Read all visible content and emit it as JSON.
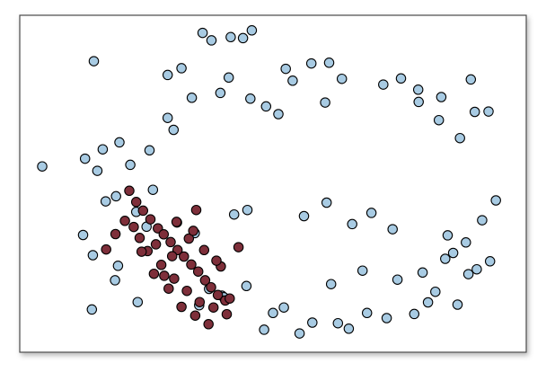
{
  "chart_data": {
    "type": "scatter",
    "title": "",
    "xlabel": "",
    "ylabel": "",
    "xlim": [
      0,
      100
    ],
    "ylim": [
      0,
      100
    ],
    "axes_visible": false,
    "grid": false,
    "legend": "none",
    "colors": {
      "series_1_fill": "#a8cbe3",
      "series_2_fill": "#7e2f3a",
      "marker_edge": "#000000",
      "frame": "#4a4a4a",
      "background": "#ffffff"
    },
    "series": [
      {
        "color_key": "series_1_fill",
        "x": [
          3.1,
          13.6,
          35.7,
          37.5,
          41.4,
          43.9,
          45.7,
          31.4,
          28.6,
          41.0,
          28.6,
          33.5,
          39.3,
          52.6,
          54.0,
          57.8,
          61.4,
          64.0,
          72.4,
          76.0,
          79.5,
          84.2,
          90.2,
          93.8,
          91.0,
          18.8,
          15.4,
          11.8,
          14.3,
          21.0,
          24.9,
          29.8,
          45.4,
          48.6,
          51.1,
          60.6,
          79.6,
          83.7,
          88.0,
          18.1,
          16.0,
          22.2,
          30.5,
          34.1,
          25.6,
          42.1,
          44.8,
          56.3,
          60.9,
          66.1,
          70.0,
          74.3,
          85.5,
          89.2,
          92.5,
          95.3,
          86.6,
          91.4,
          94.1,
          13.2,
          17.9,
          22.5,
          35.0,
          39.6,
          50.0,
          58.0,
          65.4,
          73.1,
          81.5,
          87.5,
          11.4,
          13.4,
          37.0,
          40.0,
          44.6,
          61.8,
          68.2,
          75.3,
          80.4,
          85.0,
          89.7,
          83.0,
          78.7,
          69.1,
          63.2,
          55.4,
          52.2,
          48.2,
          24.3,
          18.5
        ],
        "y": [
          55.7,
          88.5,
          97.3,
          95.0,
          96.0,
          95.7,
          98.1,
          86.3,
          84.2,
          83.4,
          70.8,
          77.1,
          78.6,
          86.1,
          82.4,
          87.8,
          88.0,
          83.0,
          81.2,
          83.1,
          79.6,
          77.3,
          82.8,
          72.8,
          72.7,
          63.2,
          61.0,
          58.1,
          54.3,
          56.2,
          60.7,
          67.1,
          76.8,
          74.4,
          72.0,
          75.6,
          75.8,
          70.1,
          64.5,
          46.4,
          44.8,
          41.5,
          38.2,
          34.9,
          48.4,
          40.7,
          42.1,
          40.2,
          44.4,
          37.7,
          41.2,
          36.1,
          34.2,
          32.0,
          38.9,
          45.1,
          28.7,
          23.6,
          26.1,
          11.1,
          20.2,
          13.4,
          12.4,
          15.4,
          10.0,
          7.0,
          5.1,
          8.4,
          13.3,
          12.6,
          34.3,
          28.0,
          17.5,
          14.9,
          18.4,
          19.0,
          23.2,
          20.4,
          22.6,
          26.9,
          22.1,
          16.6,
          9.7,
          10.0,
          6.8,
          3.6,
          11.7,
          4.8,
          36.9,
          24.7
        ]
      },
      {
        "color_key": "series_2_fill",
        "x": [
          20.8,
          22.2,
          23.6,
          25.1,
          26.6,
          27.8,
          29.2,
          30.6,
          31.9,
          33.4,
          34.8,
          36.2,
          37.4,
          38.8,
          40.3,
          41.2,
          21.7,
          24.5,
          27.3,
          29.9,
          32.5,
          35.1,
          37.9,
          40.6,
          22.9,
          25.8,
          28.8,
          31.4,
          34.2,
          36.9,
          39.4,
          23.3,
          26.2,
          29.5,
          32.9,
          36.0,
          38.5,
          30.4,
          33.8,
          27.9,
          16.1,
          18.0,
          19.9,
          34.4,
          43.0
        ],
        "y": [
          48.1,
          44.6,
          41.9,
          39.2,
          36.4,
          34.5,
          32.1,
          29.6,
          27.6,
          25.1,
          22.9,
          20.2,
          18.0,
          15.6,
          13.9,
          14.5,
          36.8,
          29.3,
          25.0,
          20.7,
          16.9,
          13.4,
          11.7,
          9.6,
          33.4,
          22.2,
          17.6,
          11.9,
          9.2,
          6.5,
          24.5,
          29.1,
          31.4,
          27.7,
          33.2,
          29.6,
          26.3,
          38.4,
          35.6,
          21.6,
          29.8,
          34.6,
          38.7,
          42.1,
          30.5
        ]
      }
    ]
  }
}
